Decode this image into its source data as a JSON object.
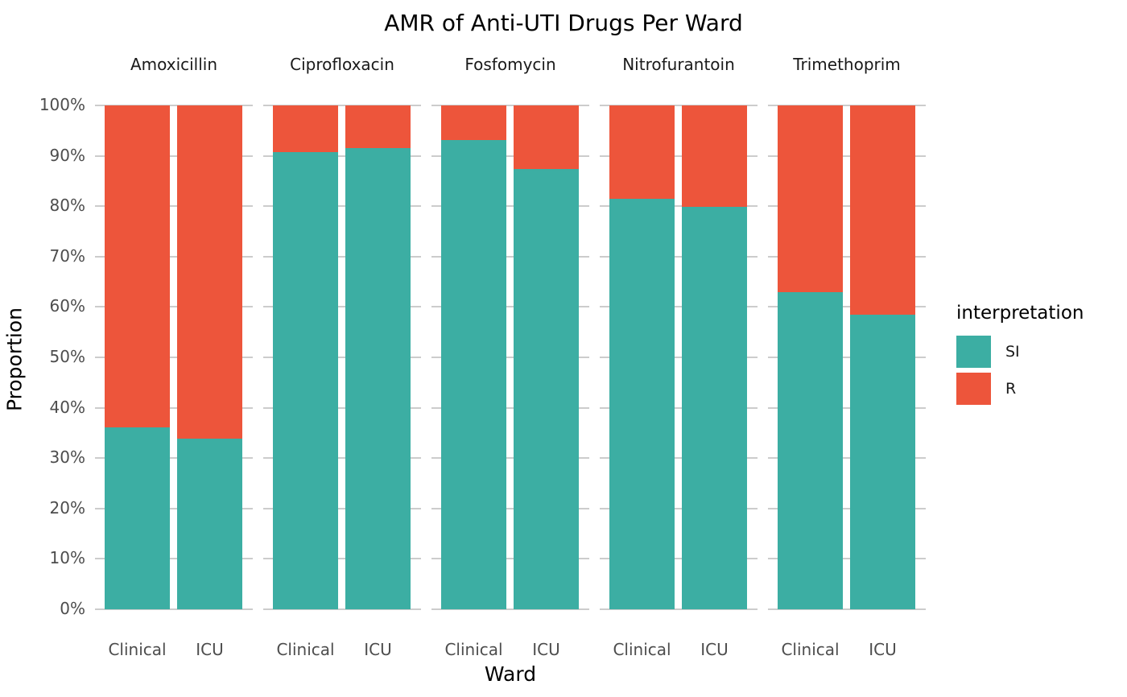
{
  "title": "AMR of Anti-UTI Drugs Per Ward",
  "colors": {
    "si": "#3CAEA3",
    "r": "#ED553B",
    "gridline": "#CCCCCC",
    "axis_text": "#4D4D4D",
    "title_text": "#000000"
  },
  "chart_data": {
    "type": "bar",
    "stacking": "100pct-stacked",
    "title": "AMR of Anti-UTI Drugs Per Ward",
    "xlabel": "Ward",
    "ylabel": "Proportion",
    "ylim": [
      0,
      100
    ],
    "grid": "horizontal-major-only",
    "y_ticks": [
      "0%",
      "10%",
      "20%",
      "30%",
      "40%",
      "50%",
      "60%",
      "70%",
      "80%",
      "90%",
      "100%"
    ],
    "y_tick_values": [
      0,
      10,
      20,
      30,
      40,
      50,
      60,
      70,
      80,
      90,
      100
    ],
    "categories": [
      "Clinical",
      "ICU"
    ],
    "legend": {
      "title": "interpretation",
      "position": "right",
      "entries": [
        {
          "label": "SI",
          "color": "#3CAEA3"
        },
        {
          "label": "R",
          "color": "#ED553B"
        }
      ]
    },
    "facets": [
      {
        "label": "Amoxicillin",
        "bars": [
          {
            "ward": "Clinical",
            "SI_pct": 36.1,
            "R_pct": 63.9
          },
          {
            "ward": "ICU",
            "SI_pct": 33.8,
            "R_pct": 66.2
          }
        ]
      },
      {
        "label": "Ciprofloxacin",
        "bars": [
          {
            "ward": "Clinical",
            "SI_pct": 90.8,
            "R_pct": 9.2
          },
          {
            "ward": "ICU",
            "SI_pct": 91.6,
            "R_pct": 8.4
          }
        ]
      },
      {
        "label": "Fosfomycin",
        "bars": [
          {
            "ward": "Clinical",
            "SI_pct": 93.1,
            "R_pct": 6.9
          },
          {
            "ward": "ICU",
            "SI_pct": 87.4,
            "R_pct": 12.6
          }
        ]
      },
      {
        "label": "Nitrofurantoin",
        "bars": [
          {
            "ward": "Clinical",
            "SI_pct": 81.4,
            "R_pct": 18.6
          },
          {
            "ward": "ICU",
            "SI_pct": 79.9,
            "R_pct": 20.1
          }
        ]
      },
      {
        "label": "Trimethoprim",
        "bars": [
          {
            "ward": "Clinical",
            "SI_pct": 63.0,
            "R_pct": 37.0
          },
          {
            "ward": "ICU",
            "SI_pct": 58.5,
            "R_pct": 41.5
          }
        ]
      }
    ]
  }
}
